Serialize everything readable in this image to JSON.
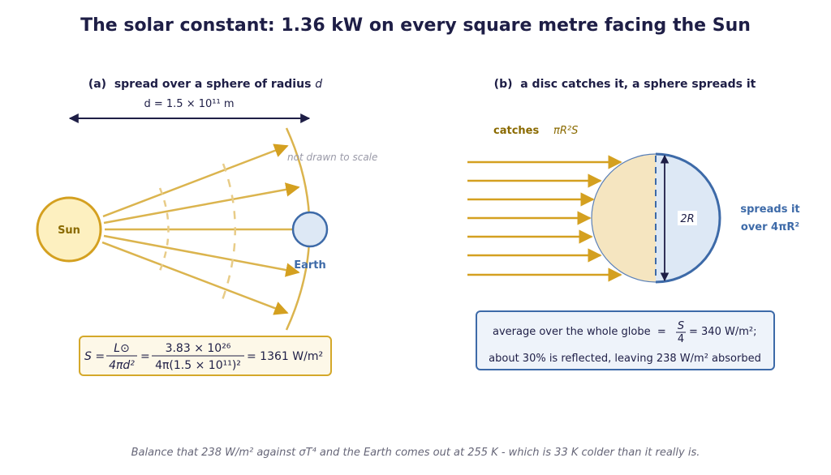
{
  "title": "The solar constant: 1.36 kW on every square metre facing the Sun",
  "panel_a": {
    "heading": "(a)  spread over a sphere of radius ",
    "heading_var": "d",
    "distance_label": "d = 1.5 × 10¹¹ m",
    "note": "not drawn to scale",
    "sun": "Sun",
    "earth": "Earth",
    "formula": {
      "lhs": "S =",
      "num1": "L⊙",
      "den1": "4πd²",
      "eq": "=",
      "num2": "3.83 × 10²⁶",
      "den2": "4π(1.5 × 10¹¹)²",
      "result": "= 1361 W/m²"
    }
  },
  "panel_b": {
    "heading": "(b)  a disc catches it, a sphere spreads it",
    "catches": "catches",
    "catches_expr": "πR²S",
    "diameter": "2R",
    "spreads_1": "spreads it",
    "spreads_2": "over 4πR²",
    "box": {
      "line1_text": "average over the whole globe  =",
      "line1_num": "S",
      "line1_den": "4",
      "line1_result": "= 340 W/m²;",
      "line2": "about 30% is reflected, leaving 238 W/m² absorbed"
    }
  },
  "footer": "Balance that 238 W/m² against σT⁴ and the Earth comes out at 255 K - which is 33 K colder than it really is."
}
